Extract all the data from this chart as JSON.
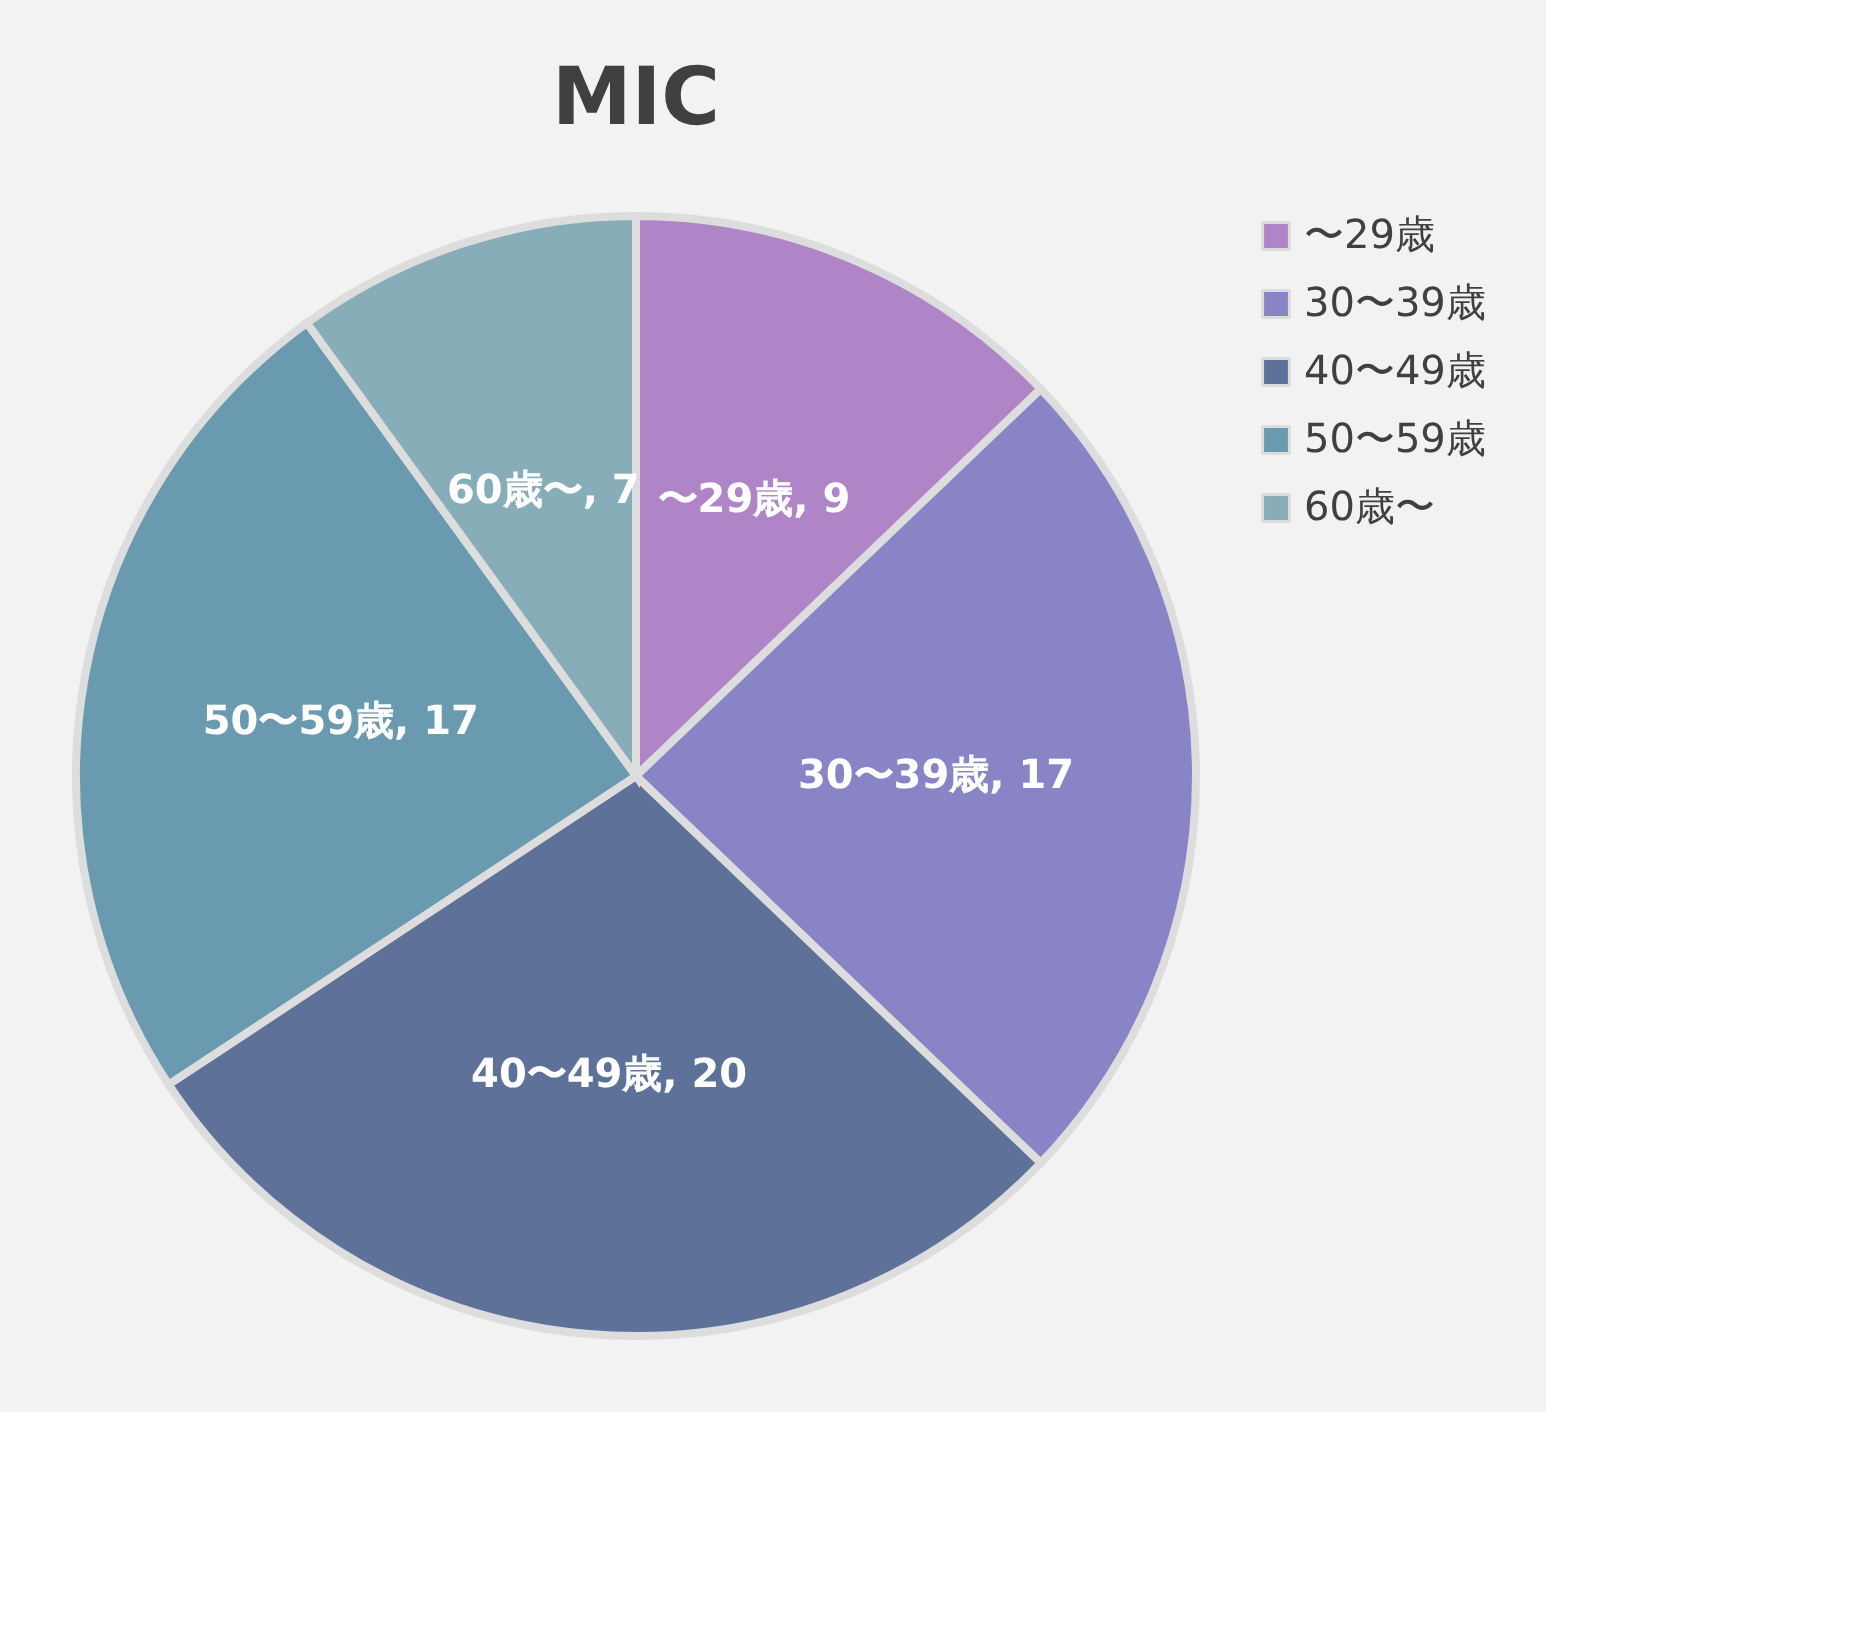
{
  "chart_data": {
    "type": "pie",
    "title": "MIC",
    "categories": [
      "〜29歳",
      "30〜39歳",
      "40〜49歳",
      "50〜59歳",
      "60歳〜"
    ],
    "values": [
      9,
      17,
      20,
      17,
      7
    ],
    "value_labels": [
      "〜29歳, 9",
      "30〜39歳, 17",
      "40〜49歳, 20",
      "50〜59歳, 17",
      "60歳〜, 7"
    ],
    "colors": [
      "#b085c7",
      "#8884c6",
      "#5e7198",
      "#6a9ab0",
      "#86adb8"
    ],
    "legend": "right"
  }
}
